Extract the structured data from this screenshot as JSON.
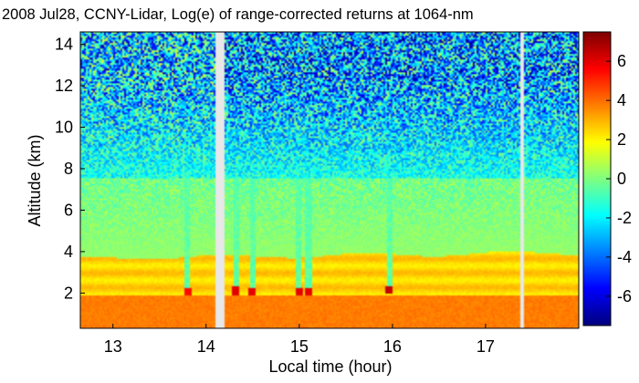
{
  "chart_data": {
    "type": "heatmap",
    "title": "2008 Jul28, CCNY-Lidar, Log(e) of range-corrected returns at 1064-nm",
    "xlabel": "Local time (hour)",
    "ylabel": "Altitude (km)",
    "xlim": [
      12.65,
      18.0
    ],
    "ylim": [
      0.3,
      14.6
    ],
    "x_ticks": [
      13,
      14,
      15,
      16,
      17
    ],
    "y_ticks": [
      2,
      4,
      6,
      8,
      10,
      12,
      14
    ],
    "colorbar": {
      "range": [
        -7.5,
        7.5
      ],
      "ticks": [
        6,
        4,
        2,
        0,
        -2,
        -4,
        -6
      ],
      "tick_labels": [
        "6",
        "4",
        "2",
        "0",
        "-2",
        "-4",
        "-6"
      ],
      "colormap": "jet"
    },
    "gaps_hour": [
      [
        14.1,
        14.2
      ],
      [
        17.38,
        17.42
      ]
    ],
    "layers": {
      "boundary_layer_top_km": 3.8,
      "boundary_layer_value": 2.5,
      "lower_mixed_value": 3.8,
      "free_troposphere_value": 0.3,
      "noise_onset_km": 7.5,
      "high_altitude_value": -1.5
    },
    "clouds": [
      {
        "hour": 14.32,
        "altitude_km": 2.1,
        "value": 6.0
      },
      {
        "hour": 14.5,
        "altitude_km": 2.05,
        "value": 6.0
      },
      {
        "hour": 15.0,
        "altitude_km": 2.05,
        "value": 6.0
      },
      {
        "hour": 15.1,
        "altitude_km": 2.05,
        "value": 6.0
      },
      {
        "hour": 15.97,
        "altitude_km": 2.15,
        "value": 6.5
      },
      {
        "hour": 13.8,
        "altitude_km": 2.05,
        "value": 5.5
      }
    ]
  }
}
